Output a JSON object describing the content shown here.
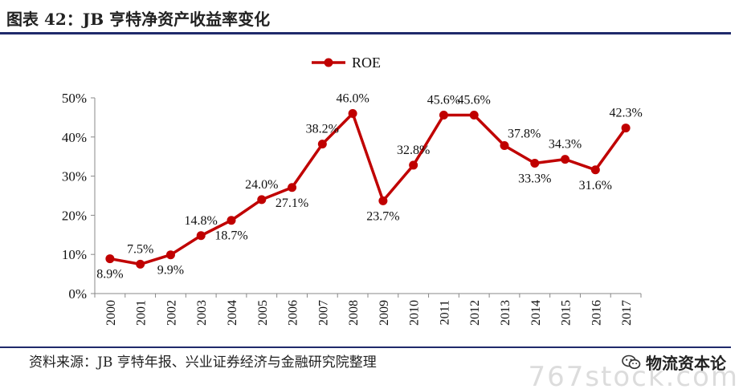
{
  "header": {
    "title": "图表 42：JB 亨特净资产收益率变化"
  },
  "footer": {
    "source": "资料来源：JB 亨特年报、兴业证券经济与金融研究院整理",
    "wechat_label": "物流资本论",
    "watermark": "767stock.com"
  },
  "colors": {
    "line": "#c00000",
    "rule": "#1f2a6b"
  },
  "chart_data": {
    "type": "line",
    "categories": [
      "2000",
      "2001",
      "2002",
      "2003",
      "2004",
      "2005",
      "2006",
      "2007",
      "2008",
      "2009",
      "2010",
      "2011",
      "2012",
      "2013",
      "2014",
      "2015",
      "2016",
      "2017"
    ],
    "series": [
      {
        "name": "ROE",
        "values": [
          8.9,
          7.5,
          9.9,
          14.8,
          18.7,
          24.0,
          27.1,
          38.2,
          46.0,
          23.7,
          32.8,
          45.6,
          45.6,
          37.8,
          33.3,
          34.3,
          31.6,
          42.3
        ],
        "labels": [
          "8.9%",
          "7.5%",
          "9.9%",
          "14.8%",
          "18.7%",
          "24.0%",
          "27.1%",
          "38.2%",
          "46.0%",
          "23.7%",
          "32.8%",
          "45.6%",
          "45.6%",
          "37.8%",
          "33.3%",
          "34.3%",
          "31.6%",
          "42.3%"
        ],
        "label_side": [
          "below",
          "above",
          "below",
          "above",
          "below",
          "above",
          "below",
          "above",
          "above",
          "below",
          "above",
          "above",
          "above",
          "right",
          "below",
          "above",
          "below",
          "above"
        ]
      }
    ],
    "yticks": [
      "0%",
      "10%",
      "20%",
      "30%",
      "40%",
      "50%"
    ],
    "ylim": [
      0,
      50
    ],
    "grid": false,
    "legend_position": "top-center"
  }
}
